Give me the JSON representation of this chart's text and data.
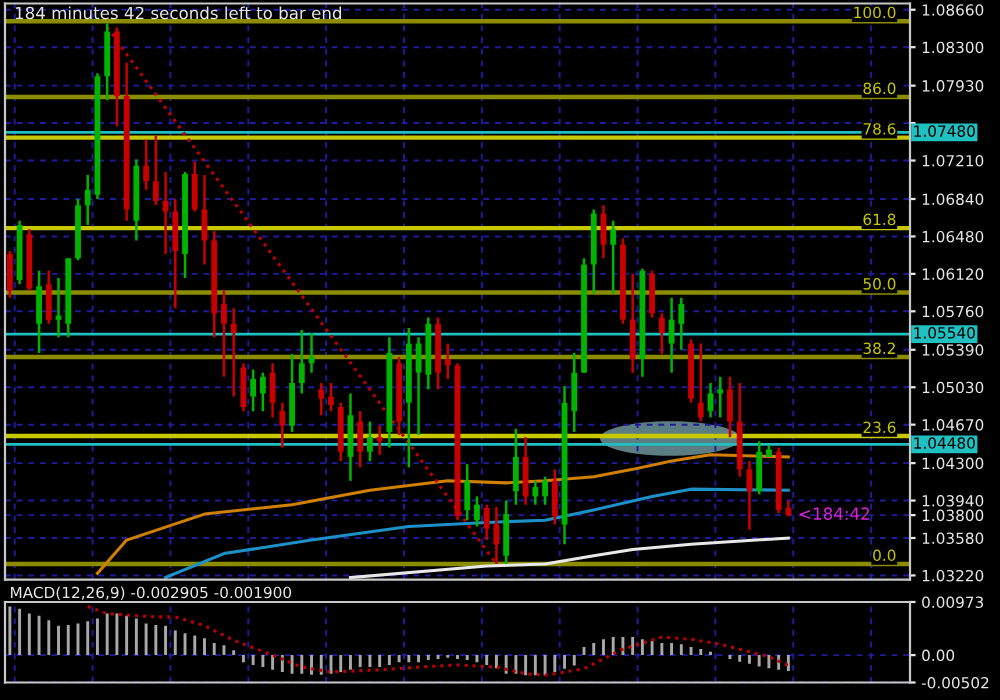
{
  "chart_data": [
    {
      "type": "candlestick",
      "categories": [
        null,
        null,
        null,
        null,
        null,
        null,
        null,
        null,
        null,
        null,
        null,
        null,
        null,
        null,
        null,
        null,
        null,
        null,
        null,
        null,
        null,
        null,
        null,
        null,
        null,
        null,
        null,
        null,
        null,
        null,
        null,
        null,
        null,
        null,
        null,
        null,
        null,
        null,
        null,
        null,
        null,
        null,
        null,
        null,
        null,
        null,
        null,
        null,
        null,
        null,
        null,
        null,
        null,
        null,
        null,
        null,
        null,
        null,
        null,
        null,
        null,
        null,
        null,
        null,
        null,
        null,
        null,
        null,
        null,
        null,
        null,
        null,
        null,
        null,
        null,
        null,
        null,
        null,
        null,
        null,
        null,
        null,
        null,
        null,
        null,
        null,
        null,
        null,
        null,
        null,
        null,
        null,
        null
      ],
      "ohlc": [
        [
          1.0631,
          1.0634,
          1.0589,
          1.0596
        ],
        [
          1.0606,
          1.0663,
          1.0602,
          1.0659
        ],
        [
          1.065,
          1.0655,
          1.0596,
          1.0598
        ],
        [
          1.0564,
          1.0615,
          1.0536,
          1.06
        ],
        [
          1.0602,
          1.0615,
          1.0564,
          1.0568
        ],
        [
          1.0568,
          1.0608,
          1.0551,
          1.0572
        ],
        [
          1.0564,
          1.0627,
          1.0551,
          1.0627
        ],
        [
          1.0627,
          1.0684,
          1.0625,
          1.0678
        ],
        [
          1.0678,
          1.0707,
          1.0659,
          1.0693
        ],
        [
          1.0688,
          1.0805,
          1.0684,
          1.0802
        ],
        [
          1.0802,
          1.0853,
          1.0779,
          1.0845
        ],
        [
          1.0845,
          1.0849,
          1.0754,
          1.0783
        ],
        [
          1.0783,
          1.0815,
          1.0663,
          1.0674
        ],
        [
          1.0663,
          1.0722,
          1.0644,
          1.0716
        ],
        [
          1.0716,
          1.0741,
          1.0693,
          1.0701
        ],
        [
          1.0701,
          1.0745,
          1.0678,
          1.0682
        ],
        [
          1.0682,
          1.071,
          1.0631,
          1.0672
        ],
        [
          1.0672,
          1.0684,
          1.0579,
          1.0634
        ],
        [
          1.0631,
          1.071,
          1.0608,
          1.0708
        ],
        [
          1.0708,
          1.072,
          1.0672,
          1.0674
        ],
        [
          1.0674,
          1.0707,
          1.0621,
          1.0644
        ],
        [
          1.0644,
          1.0653,
          1.0551,
          1.0574
        ],
        [
          1.0583,
          1.0596,
          1.0513,
          1.0564
        ],
        [
          1.0564,
          1.0579,
          1.0494,
          1.0555
        ],
        [
          1.0522,
          1.0526,
          1.048,
          1.0484
        ],
        [
          1.0494,
          1.052,
          1.048,
          1.0511
        ],
        [
          1.0497,
          1.0517,
          1.048,
          1.0513
        ],
        [
          1.0517,
          1.0526,
          1.0474,
          1.0488
        ],
        [
          1.048,
          1.0488,
          1.0445,
          1.0466
        ],
        [
          1.0466,
          1.0535,
          1.046,
          1.0507
        ],
        [
          1.0507,
          1.0558,
          1.0497,
          1.0526
        ],
        [
          1.0526,
          1.0555,
          1.0517,
          1.0532
        ],
        [
          1.0501,
          1.0507,
          1.0476,
          1.0492
        ],
        [
          1.0494,
          1.0507,
          1.048,
          1.0486
        ],
        [
          1.0484,
          1.0488,
          1.0432,
          1.0441
        ],
        [
          1.0436,
          1.0497,
          1.0413,
          1.0476
        ],
        [
          1.047,
          1.048,
          1.0426,
          1.0441
        ],
        [
          1.0441,
          1.047,
          1.0432,
          1.0455
        ],
        [
          1.0455,
          1.0466,
          1.0438,
          1.0451
        ],
        [
          1.046,
          1.0551,
          1.0445,
          1.0536
        ],
        [
          1.0526,
          1.0532,
          1.0457,
          1.047
        ],
        [
          1.0488,
          1.056,
          1.0426,
          1.0545
        ],
        [
          1.0517,
          1.0551,
          1.0457,
          1.0545
        ],
        [
          1.0515,
          1.057,
          1.0501,
          1.0564
        ],
        [
          1.0564,
          1.057,
          1.0501,
          1.0517
        ],
        [
          1.053,
          1.0545,
          1.0511,
          1.0524
        ],
        [
          1.0524,
          1.0526,
          1.0375,
          1.0379
        ],
        [
          1.0385,
          1.0429,
          1.0375,
          1.0413
        ],
        [
          1.0375,
          1.0398,
          1.0369,
          1.039
        ],
        [
          1.0387,
          1.039,
          1.0356,
          1.0367
        ],
        [
          1.0371,
          1.0388,
          1.0333,
          1.0352
        ],
        [
          1.0341,
          1.0394,
          1.0333,
          1.0381
        ],
        [
          1.0403,
          1.0463,
          1.039,
          1.0436
        ],
        [
          1.0436,
          1.0455,
          1.039,
          1.0398
        ],
        [
          1.0398,
          1.0413,
          1.039,
          1.0407
        ],
        [
          1.0398,
          1.0417,
          1.039,
          1.0413
        ],
        [
          1.0413,
          1.0424,
          1.0371,
          1.0379
        ],
        [
          1.0371,
          1.0504,
          1.0352,
          1.0488
        ],
        [
          1.048,
          1.0536,
          1.046,
          1.0517
        ],
        [
          1.0517,
          1.0627,
          1.0517,
          1.0621
        ],
        [
          1.0621,
          1.0674,
          1.0593,
          1.067
        ],
        [
          1.067,
          1.0678,
          1.0627,
          1.064
        ],
        [
          1.064,
          1.0663,
          1.0593,
          1.0655
        ],
        [
          1.064,
          1.0646,
          1.0564,
          1.0568
        ],
        [
          1.0568,
          1.0612,
          1.0517,
          1.053
        ],
        [
          1.053,
          1.0617,
          1.0513,
          1.0615
        ],
        [
          1.0612,
          1.0615,
          1.057,
          1.0574
        ],
        [
          1.057,
          1.0574,
          1.0535,
          1.0555
        ],
        [
          1.0545,
          1.0589,
          1.0517,
          1.0568
        ],
        [
          1.0564,
          1.0589,
          1.0539,
          1.0583
        ],
        [
          1.0545,
          1.0549,
          1.0488,
          1.0492
        ],
        [
          1.0488,
          1.0545,
          1.047,
          1.0474
        ],
        [
          1.048,
          1.0507,
          1.0474,
          1.0497
        ],
        [
          1.0497,
          1.0513,
          1.0474,
          1.0501
        ],
        [
          1.0501,
          1.0513,
          1.0455,
          1.047
        ],
        [
          1.047,
          1.0507,
          1.0417,
          1.0424
        ],
        [
          1.0424,
          1.0432,
          1.0366,
          1.0403
        ],
        [
          1.0403,
          1.0451,
          1.04,
          1.0441
        ],
        [
          1.0436,
          1.0447,
          1.0436,
          1.0443
        ],
        [
          1.0441,
          1.0445,
          1.0382,
          1.0385
        ],
        [
          1.0387,
          1.0394,
          1.0379,
          1.038
        ],
        null,
        null,
        null,
        null,
        null,
        null,
        null,
        null,
        null,
        null,
        null,
        null
      ],
      "colors": [
        "#c80000",
        "#00b400",
        "#c80000",
        "#00b400",
        "#c80000",
        "#00b400",
        "#00b400",
        "#00b400",
        "#00b400",
        "#00b400",
        "#00b400",
        "#c80000",
        "#c80000",
        "#00b400",
        "#c80000",
        "#c80000",
        "#c80000",
        "#c80000",
        "#00b400",
        "#c80000",
        "#c80000",
        "#c80000",
        "#c80000",
        "#c80000",
        "#c80000",
        "#00b400",
        "#00b400",
        "#c80000",
        "#c80000",
        "#00b400",
        "#00b400",
        "#00b400",
        "#c80000",
        "#c80000",
        "#c80000",
        "#00b400",
        "#c80000",
        "#00b400",
        "#c80000",
        "#00b400",
        "#c80000",
        "#00b400",
        "#00b400",
        "#00b400",
        "#c80000",
        "#c80000",
        "#c80000",
        "#00b400",
        "#00b400",
        "#c80000",
        "#c80000",
        "#00b400",
        "#00b400",
        "#c80000",
        "#00b400",
        "#00b400",
        "#c80000",
        "#00b400",
        "#00b400",
        "#00b400",
        "#00b400",
        "#c80000",
        "#00b400",
        "#c80000",
        "#c80000",
        "#00b400",
        "#c80000",
        "#c80000",
        "#00b400",
        "#00b400",
        "#c80000",
        "#c80000",
        "#00b400",
        "#00b400",
        "#c80000",
        "#c80000",
        "#c80000",
        "#00b400",
        "#00b400",
        "#c80000",
        "#c80000",
        null,
        null,
        null,
        null,
        null,
        null,
        null,
        null,
        null,
        null,
        null,
        null
      ],
      "series": [
        {
          "type": "line",
          "color": "#d08000",
          "line_style": "solid",
          "values": [
            null,
            null,
            null,
            null,
            null,
            null,
            null,
            null,
            null,
            1.0324,
            null,
            null,
            1.0356,
            null,
            null,
            null,
            null,
            null,
            null,
            null,
            1.0381,
            null,
            null,
            null,
            null,
            null,
            null,
            null,
            null,
            1.039,
            null,
            null,
            null,
            null,
            null,
            null,
            null,
            1.0404,
            null,
            null,
            null,
            null,
            null,
            null,
            null,
            1.0413,
            null,
            null,
            null,
            null,
            null,
            1.0411,
            null,
            null,
            null,
            1.0413,
            null,
            null,
            null,
            null,
            1.0417,
            null,
            null,
            null,
            1.0424,
            null,
            null,
            null,
            1.0432,
            null,
            null,
            null,
            1.0438,
            null,
            null,
            null,
            null,
            null,
            null,
            null,
            1.0436,
            null,
            null,
            null,
            null,
            null,
            null,
            null,
            null,
            null,
            null,
            null,
            null
          ]
        },
        {
          "type": "line",
          "color": "#1e90c8",
          "line_style": "solid",
          "values": [
            null,
            null,
            null,
            null,
            null,
            null,
            null,
            null,
            null,
            null,
            null,
            null,
            null,
            null,
            null,
            null,
            1.032,
            null,
            null,
            null,
            null,
            null,
            1.0343,
            null,
            null,
            null,
            null,
            null,
            null,
            null,
            null,
            1.0356,
            null,
            null,
            null,
            null,
            null,
            null,
            null,
            null,
            null,
            1.0369,
            null,
            null,
            null,
            null,
            null,
            null,
            null,
            1.0373,
            null,
            null,
            null,
            null,
            null,
            1.0375,
            null,
            null,
            null,
            null,
            1.0385,
            null,
            null,
            null,
            null,
            null,
            1.0398,
            null,
            null,
            null,
            1.0405,
            null,
            null,
            null,
            null,
            null,
            null,
            null,
            null,
            null,
            1.0404,
            null,
            null,
            null,
            null,
            null,
            null,
            null,
            null,
            null,
            null,
            null,
            null
          ]
        },
        {
          "type": "line",
          "color": "#e8e8e8",
          "line_style": "solid",
          "values": [
            null,
            null,
            null,
            null,
            null,
            null,
            null,
            null,
            null,
            null,
            null,
            null,
            null,
            null,
            null,
            null,
            null,
            null,
            null,
            null,
            null,
            null,
            null,
            null,
            null,
            null,
            null,
            null,
            null,
            null,
            null,
            null,
            null,
            null,
            null,
            1.032,
            null,
            null,
            null,
            null,
            null,
            null,
            null,
            null,
            null,
            null,
            null,
            null,
            null,
            1.0331,
            null,
            null,
            null,
            null,
            null,
            1.0333,
            null,
            null,
            null,
            null,
            1.0341,
            null,
            null,
            null,
            1.0347,
            null,
            null,
            null,
            null,
            null,
            1.0352,
            null,
            null,
            null,
            null,
            null,
            null,
            null,
            null,
            null,
            1.0358,
            null,
            null,
            null,
            null,
            null,
            null,
            null,
            null,
            null,
            null,
            null,
            null
          ]
        },
        {
          "type": "line",
          "color": "#c00000",
          "line_style": "dotted",
          "values": [
            null,
            null,
            null,
            null,
            null,
            null,
            null,
            null,
            null,
            null,
            1.0849,
            null,
            null,
            null,
            null,
            null,
            null,
            null,
            null,
            null,
            null,
            null,
            null,
            null,
            null,
            null,
            null,
            null,
            null,
            null,
            null,
            null,
            null,
            null,
            null,
            null,
            null,
            null,
            null,
            null,
            null,
            null,
            null,
            null,
            null,
            null,
            null,
            null,
            null,
            null,
            1.0333,
            null,
            null,
            null,
            null,
            null,
            null,
            null,
            null,
            null,
            null,
            null,
            null,
            null,
            null,
            null,
            null,
            null,
            null,
            null,
            null,
            null,
            null,
            null,
            null,
            null,
            null,
            null,
            null,
            null,
            null,
            null,
            null,
            null,
            null,
            null,
            null,
            null,
            null,
            null,
            null,
            null,
            null
          ]
        }
      ],
      "ref_lines": [
        {
          "axis": "y",
          "value": 1.0855,
          "color": "#8c8c00"
        },
        {
          "axis": "y",
          "value": 1.0782,
          "color": "#8c8c00"
        },
        {
          "axis": "y",
          "value": 1.0743,
          "color": "#c8c800"
        },
        {
          "axis": "y",
          "value": 1.0656,
          "color": "#c8c800"
        },
        {
          "axis": "y",
          "value": 1.0594,
          "color": "#8c8c00"
        },
        {
          "axis": "y",
          "value": 1.0532,
          "color": "#8c8c00"
        },
        {
          "axis": "y",
          "value": 1.0456,
          "color": "#c8c800"
        },
        {
          "axis": "y",
          "value": 1.0333,
          "color": "#8c8c00"
        },
        {
          "axis": "y",
          "value": 1.0748,
          "label": "1.07480",
          "color": "#20c0c0"
        },
        {
          "axis": "y",
          "value": 1.0554,
          "label": "1.05540",
          "color": "#20c0c0"
        },
        {
          "axis": "y",
          "value": 1.0448,
          "label": "1.04480",
          "color": "#20c0c0"
        }
      ],
      "annotations": [
        "184 minutes 42 seconds left to bar end",
        "<184:42",
        {
          "text": "100.0",
          "y": 1.0855
        },
        {
          "text": "86.0",
          "y": 1.0782
        },
        {
          "text": "78.6",
          "y": 1.0743
        },
        {
          "text": "61.8",
          "y": 1.0656
        },
        {
          "text": "50.0",
          "y": 1.0594
        },
        {
          "text": "38.2",
          "y": 1.0532
        },
        {
          "text": "23.6",
          "y": 1.0456
        },
        {
          "text": "0.0",
          "y": 1.0333
        }
      ],
      "ylim": [
        1.0318,
        1.0872
      ],
      "yticks": [
        {
          "value": 1.0866,
          "label": "1.08660"
        },
        {
          "value": 1.083,
          "label": "1.08300"
        },
        {
          "value": 1.0793,
          "label": "1.07930"
        },
        {
          "value": 1.0757,
          "label": null
        },
        {
          "value": 1.0721,
          "label": "1.07210"
        },
        {
          "value": 1.0684,
          "label": "1.06840"
        },
        {
          "value": 1.0648,
          "label": "1.06480"
        },
        {
          "value": 1.0612,
          "label": "1.06120"
        },
        {
          "value": 1.0576,
          "label": "1.05760"
        },
        {
          "value": 1.0539,
          "label": "1.05390"
        },
        {
          "value": 1.0503,
          "label": "1.05030"
        },
        {
          "value": 1.0467,
          "label": "1.04670"
        },
        {
          "value": 1.043,
          "label": "1.04300"
        },
        {
          "value": 1.0394,
          "label": "1.03940"
        },
        {
          "value": 1.038,
          "label": "1.03800"
        },
        {
          "value": 1.0358,
          "label": "1.03580"
        },
        {
          "value": 1.0322,
          "label": "1.03220"
        }
      ],
      "grid": true,
      "tick_labels": "y"
    },
    {
      "type": "bar",
      "title": "MACD(12,26,9) -0.002905 -0.001900",
      "categories": [
        null,
        null,
        null,
        null,
        null,
        null,
        null,
        null,
        null,
        null,
        null,
        null,
        null,
        null,
        null,
        null,
        null,
        null,
        null,
        null,
        null,
        null,
        null,
        null,
        null,
        null,
        null,
        null,
        null,
        null,
        null,
        null,
        null,
        null,
        null,
        null,
        null,
        null,
        null,
        null,
        null,
        null,
        null,
        null,
        null,
        null,
        null,
        null,
        null,
        null,
        null,
        null,
        null,
        null,
        null,
        null,
        null,
        null,
        null,
        null,
        null,
        null,
        null,
        null,
        null,
        null,
        null,
        null,
        null,
        null,
        null,
        null,
        null,
        null,
        null,
        null,
        null,
        null,
        null,
        null,
        null,
        null,
        null,
        null,
        null,
        null,
        null,
        null,
        null,
        null,
        null,
        null,
        null
      ],
      "series": [
        {
          "type": "bar",
          "color": "#a8a8a8",
          "values": [
            0.0089,
            0.0085,
            0.0076,
            0.0072,
            0.0064,
            0.0054,
            0.0055,
            0.0058,
            0.0062,
            0.0067,
            0.0076,
            0.0076,
            0.0072,
            0.0067,
            0.0058,
            0.0055,
            0.0054,
            0.0045,
            0.004,
            0.0036,
            0.0031,
            0.0022,
            0.0018,
            0.0009,
            -0.0013,
            -0.0018,
            -0.0022,
            -0.0027,
            -0.0031,
            -0.0034,
            -0.0034,
            -0.0036,
            -0.0036,
            -0.0034,
            -0.0031,
            -0.0027,
            -0.0022,
            -0.0022,
            -0.0022,
            -0.0018,
            -0.0013,
            -0.0013,
            -0.0013,
            -0.0009,
            -0.0007,
            -0.0005,
            -0.0007,
            -0.0009,
            -0.0013,
            -0.0018,
            -0.0024,
            -0.0034,
            -0.0034,
            -0.0037,
            -0.0037,
            -0.0037,
            -0.0031,
            -0.0025,
            -0.0019,
            0.0015,
            0.0022,
            0.0029,
            0.0033,
            0.0033,
            0.0033,
            0.0029,
            0.0026,
            0.0022,
            0.0022,
            0.002,
            0.0015,
            0.0011,
            0.0006,
            null,
            -0.0007,
            -0.0012,
            -0.0016,
            -0.0021,
            -0.0024,
            -0.0027,
            -0.0029,
            null,
            null,
            null,
            null,
            null,
            null,
            null,
            null,
            null,
            null,
            null,
            null
          ]
        },
        {
          "type": "line",
          "color": "#c00000",
          "line_style": "dotted",
          "values": [
            null,
            null,
            null,
            null,
            null,
            null,
            null,
            null,
            0.0089,
            null,
            0.0076,
            null,
            null,
            null,
            null,
            0.007,
            null,
            0.007,
            null,
            null,
            0.0054,
            null,
            null,
            0.0027,
            null,
            null,
            null,
            0.0,
            null,
            null,
            -0.0022,
            null,
            null,
            -0.0031,
            null,
            null,
            null,
            null,
            -0.0027,
            null,
            null,
            null,
            -0.0022,
            null,
            null,
            null,
            -0.0018,
            null,
            null,
            null,
            -0.0022,
            null,
            null,
            -0.0034,
            null,
            -0.0037,
            null,
            null,
            null,
            -0.0025,
            null,
            null,
            null,
            0.0011,
            null,
            null,
            null,
            0.0033,
            null,
            null,
            0.0029,
            null,
            null,
            0.002,
            null,
            null,
            0.0006,
            null,
            -0.0003,
            null,
            -0.0019,
            null,
            null,
            null,
            null,
            null,
            null,
            null,
            null,
            null,
            null,
            null,
            null
          ]
        }
      ],
      "ylim": [
        -0.00502,
        0.00973
      ],
      "yticks": [
        {
          "value": 0.00973,
          "label": "0.00973"
        },
        {
          "value": 0,
          "label": "0.00"
        },
        {
          "value": -0.00502,
          "label": "-0.00502"
        }
      ],
      "grid": true,
      "tick_labels": "y"
    }
  ]
}
